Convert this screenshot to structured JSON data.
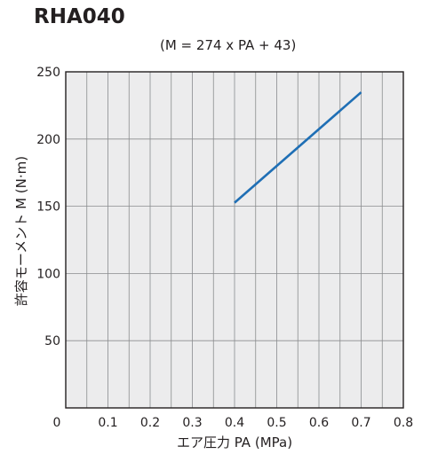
{
  "chart_data": {
    "type": "line",
    "title": "RHA040",
    "subtitle": "(M = 274 x PA + 43)",
    "xlabel": "エア圧力 PA  (MPa)",
    "ylabel": "許容モーメント M  (N·m)",
    "xlim": [
      0,
      0.8
    ],
    "ylim": [
      0,
      250
    ],
    "x_ticks": [
      0,
      0.1,
      0.2,
      0.3,
      0.4,
      0.5,
      0.6,
      0.7,
      0.8
    ],
    "x_tick_labels": [
      "0",
      "0.1",
      "0.2",
      "0.3",
      "0.4",
      "0.5",
      "0.6",
      "0.7",
      "0.8"
    ],
    "y_ticks": [
      50,
      100,
      150,
      200,
      250
    ],
    "y_tick_labels": [
      "50",
      "100",
      "150",
      "200",
      "250"
    ],
    "grid": true,
    "series": [
      {
        "x": [
          0.4,
          0.7
        ],
        "y": [
          152.6,
          234.8
        ]
      }
    ],
    "colors": {
      "line": "#1f6fb5",
      "grid": "#8a8c8e",
      "plot_bg": "#ececed",
      "frame": "#231f20"
    }
  }
}
